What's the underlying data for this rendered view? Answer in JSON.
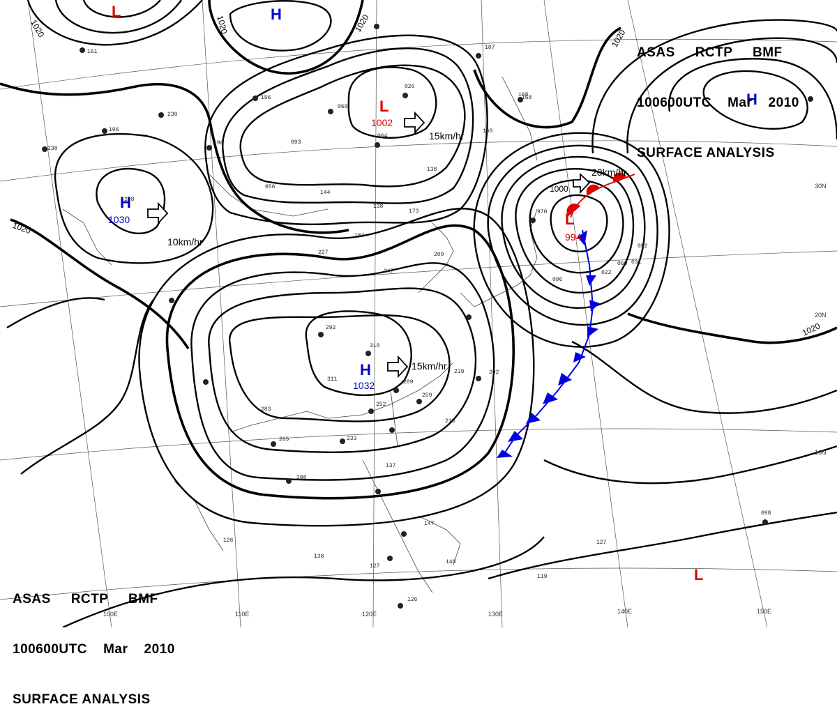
{
  "header": {
    "line1": [
      "ASAS",
      "RCTP",
      "BMF"
    ],
    "line2": [
      "100600UTC",
      "Mar",
      "2010"
    ],
    "line3": "SURFACE ANALYSIS"
  },
  "isobar_labels": [
    "1020",
    "1020",
    "1020",
    "1020",
    "1020",
    "1020",
    "1000"
  ],
  "pressure_centers": [
    {
      "type": "L",
      "value": "",
      "color": "#e00000"
    },
    {
      "type": "H",
      "value": "",
      "color": "#0000cc"
    },
    {
      "type": "L",
      "value": "1002",
      "color": "#e00000"
    },
    {
      "type": "H",
      "value": "1030",
      "color": "#0000cc"
    },
    {
      "type": "H",
      "value": "1032",
      "color": "#0000cc"
    },
    {
      "type": "L",
      "value": "994",
      "color": "#e00000"
    },
    {
      "type": "H",
      "value": "",
      "color": "#0000cc"
    },
    {
      "type": "L",
      "value": "",
      "color": "#e00000"
    }
  ],
  "motion_labels": [
    "15km/hr",
    "10km/hr",
    "15km/hr",
    "20km/hr"
  ],
  "longitude_labels": [
    "100E",
    "110E",
    "120E",
    "130E",
    "140E",
    "150E"
  ],
  "latitude_labels": [
    "30N",
    "20N",
    "10N"
  ],
  "station_values": [
    "161",
    "230",
    "196",
    "238",
    "228",
    "156",
    "196",
    "093",
    "056",
    "064",
    "026",
    "060",
    "168",
    "144",
    "138",
    "138",
    "173",
    "184",
    "227",
    "247",
    "160",
    "187",
    "168",
    "200",
    "292",
    "310",
    "311",
    "289",
    "239",
    "259",
    "283",
    "265",
    "252",
    "233",
    "218",
    "208",
    "202",
    "137",
    "126",
    "147",
    "138",
    "127",
    "140",
    "126",
    "119",
    "098",
    "127",
    "096",
    "060",
    "052",
    "022",
    "031",
    "970"
  ],
  "colors": {
    "low": "#e00000",
    "high": "#0000cc",
    "cold_front": "#0000e0",
    "warm_front": "#e00000",
    "isobar": "#000000"
  }
}
